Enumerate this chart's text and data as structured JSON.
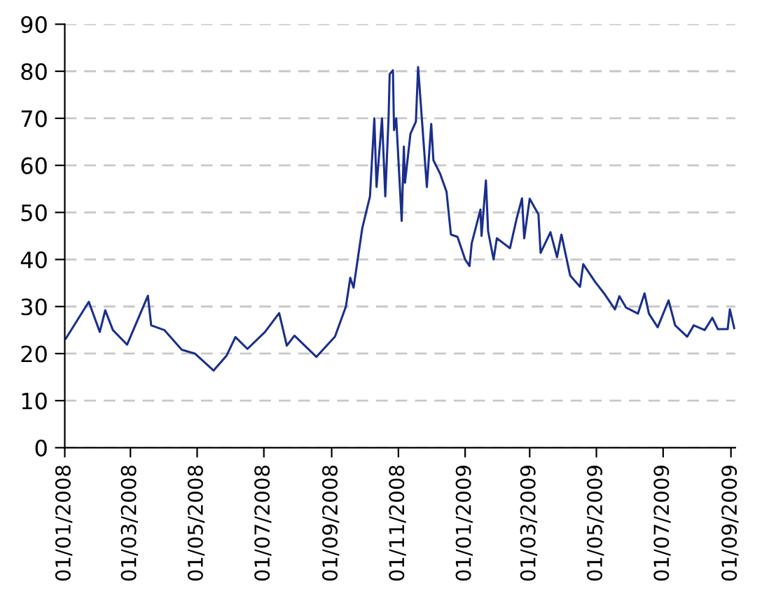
{
  "chart_data": {
    "type": "line",
    "grid": "y",
    "marker": "none",
    "line_style": "solid",
    "xlim": [
      "2008-01-01",
      "2009-09-05"
    ],
    "ylim": [
      0,
      90
    ],
    "yticks": [
      0,
      10,
      20,
      30,
      40,
      50,
      60,
      70,
      80,
      90
    ],
    "xticks": [
      {
        "value": "2008-01-01",
        "label": "01/01/2008"
      },
      {
        "value": "2008-03-01",
        "label": "01/03/2008"
      },
      {
        "value": "2008-05-01",
        "label": "01/05/2008"
      },
      {
        "value": "2008-07-01",
        "label": "01/07/2008"
      },
      {
        "value": "2008-09-01",
        "label": "01/09/2008"
      },
      {
        "value": "2008-11-01",
        "label": "01/11/2008"
      },
      {
        "value": "2009-01-01",
        "label": "01/01/2009"
      },
      {
        "value": "2009-03-01",
        "label": "01/03/2009"
      },
      {
        "value": "2009-05-01",
        "label": "01/05/2009"
      },
      {
        "value": "2009-07-01",
        "label": "01/07/2009"
      },
      {
        "value": "2009-09-01",
        "label": "01/09/2009"
      }
    ],
    "series": [
      {
        "color": "#1a2f8c",
        "x": [
          "2008-01-02",
          "2008-01-23",
          "2008-02-02",
          "2008-02-07",
          "2008-02-14",
          "2008-02-27",
          "2008-03-17",
          "2008-03-20",
          "2008-04-01",
          "2008-04-17",
          "2008-04-29",
          "2008-05-16",
          "2008-05-28",
          "2008-06-05",
          "2008-06-16",
          "2008-07-02",
          "2008-07-15",
          "2008-07-22",
          "2008-07-29",
          "2008-08-18",
          "2008-09-04",
          "2008-09-14",
          "2008-09-18",
          "2008-09-21",
          "2008-09-29",
          "2008-10-06",
          "2008-10-10",
          "2008-10-12",
          "2008-10-17",
          "2008-10-20",
          "2008-10-23",
          "2008-10-24",
          "2008-10-27",
          "2008-10-28",
          "2008-10-30",
          "2008-11-04",
          "2008-11-06",
          "2008-11-07",
          "2008-11-12",
          "2008-11-17",
          "2008-11-19",
          "2008-11-27",
          "2008-12-01",
          "2008-12-03",
          "2008-12-09",
          "2008-12-15",
          "2008-12-19",
          "2008-12-25",
          "2009-01-01",
          "2009-01-05",
          "2009-01-07",
          "2009-01-15",
          "2009-01-16",
          "2009-01-20",
          "2009-01-22",
          "2009-01-27",
          "2009-01-30",
          "2009-02-11",
          "2009-02-17",
          "2009-02-22",
          "2009-02-24",
          "2009-03-01",
          "2009-03-09",
          "2009-03-11",
          "2009-03-20",
          "2009-03-26",
          "2009-03-30",
          "2009-04-07",
          "2009-04-16",
          "2009-04-19",
          "2009-04-30",
          "2009-05-08",
          "2009-05-18",
          "2009-05-22",
          "2009-05-28",
          "2009-06-08",
          "2009-06-14",
          "2009-06-18",
          "2009-06-26",
          "2009-07-06",
          "2009-07-12",
          "2009-07-23",
          "2009-07-29",
          "2009-08-08",
          "2009-08-15",
          "2009-08-20",
          "2009-08-29",
          "2009-08-31",
          "2009-09-04"
        ],
        "values": [
          23.2,
          31,
          24.6,
          29.2,
          25,
          21.9,
          32.3,
          26,
          25,
          20.8,
          20,
          16.4,
          19.6,
          23.5,
          21,
          24.6,
          28.6,
          21.7,
          23.8,
          19.3,
          23.6,
          30,
          36.1,
          34,
          46.7,
          53.4,
          70,
          55.4,
          70,
          53.4,
          70,
          79.4,
          80.2,
          67.5,
          70,
          48.2,
          64,
          56.3,
          66.7,
          69.3,
          80.9,
          55.4,
          68.8,
          61.1,
          58.3,
          54.4,
          45.3,
          44.8,
          40,
          38.6,
          43.4,
          50.6,
          45,
          56.8,
          46,
          40,
          44.5,
          42.4,
          48.6,
          53,
          44.5,
          52.9,
          49.6,
          41.4,
          45.8,
          40.5,
          45.3,
          36.6,
          34.2,
          39,
          35.2,
          32.8,
          29.4,
          32.2,
          29.8,
          28.5,
          32.8,
          28.5,
          25.6,
          31.3,
          26,
          23.6,
          26,
          25,
          27.6,
          25.2,
          25.2,
          29.4,
          25.4
        ]
      }
    ]
  }
}
